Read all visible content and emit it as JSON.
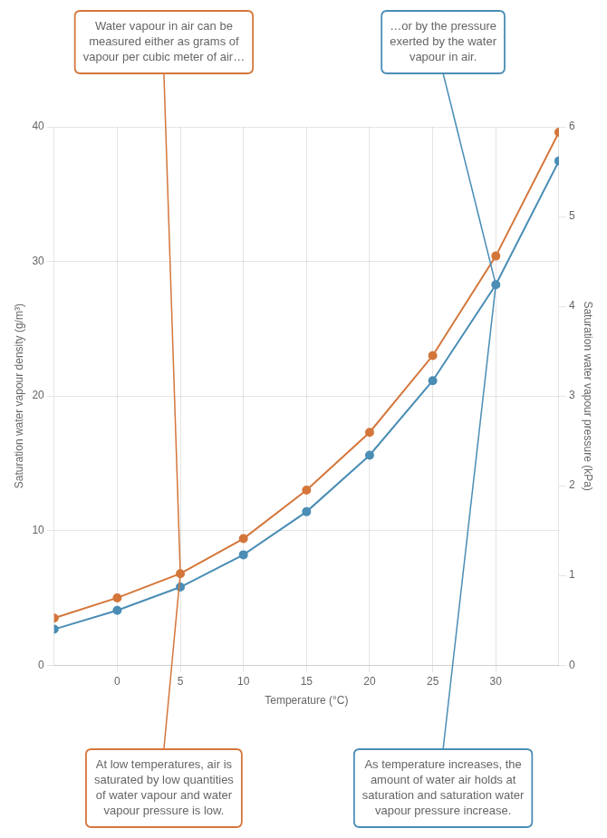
{
  "chart_data": {
    "type": "line",
    "xlabel": "Temperature (°C)",
    "ylabel": "Saturation water vapour density (g/m³)",
    "y2label": "Saturation water vapour pressure (kPa)",
    "x": [
      -5,
      0,
      5,
      10,
      15,
      20,
      25,
      30,
      35
    ],
    "series": [
      {
        "color": "#d4763b",
        "values": [
          3.5,
          5.0,
          6.8,
          9.4,
          13.0,
          17.3,
          23.0,
          30.4,
          39.6
        ]
      },
      {
        "color": "#4a8db5",
        "axis": "y2",
        "values": [
          0.4,
          0.61,
          0.87,
          1.23,
          1.71,
          2.34,
          3.17,
          4.24,
          5.62
        ]
      }
    ],
    "xlim": [
      -5,
      35
    ],
    "xticks": [
      0,
      5,
      10,
      15,
      20,
      25,
      30
    ],
    "ylim": [
      0,
      40
    ],
    "yticks": [
      0,
      10,
      20,
      30,
      40
    ],
    "y2lim": [
      0,
      6
    ],
    "y2ticks": [
      0,
      1,
      2,
      3,
      4,
      5,
      6
    ],
    "grid": true,
    "annotations": [
      "Water vapour in air can be\nmeasured either as grams of\nvapour per cubic meter of air…",
      "…or by the pressure\nexerted by the water\nvapour in air.",
      "At low temperatures, air is\nsaturated by low quantities\nof water vapour and water\nvapour pressure is low.",
      "As temperature increases, the\namount of water air holds at\nsaturation and saturation water\nvapour pressure increase."
    ]
  }
}
